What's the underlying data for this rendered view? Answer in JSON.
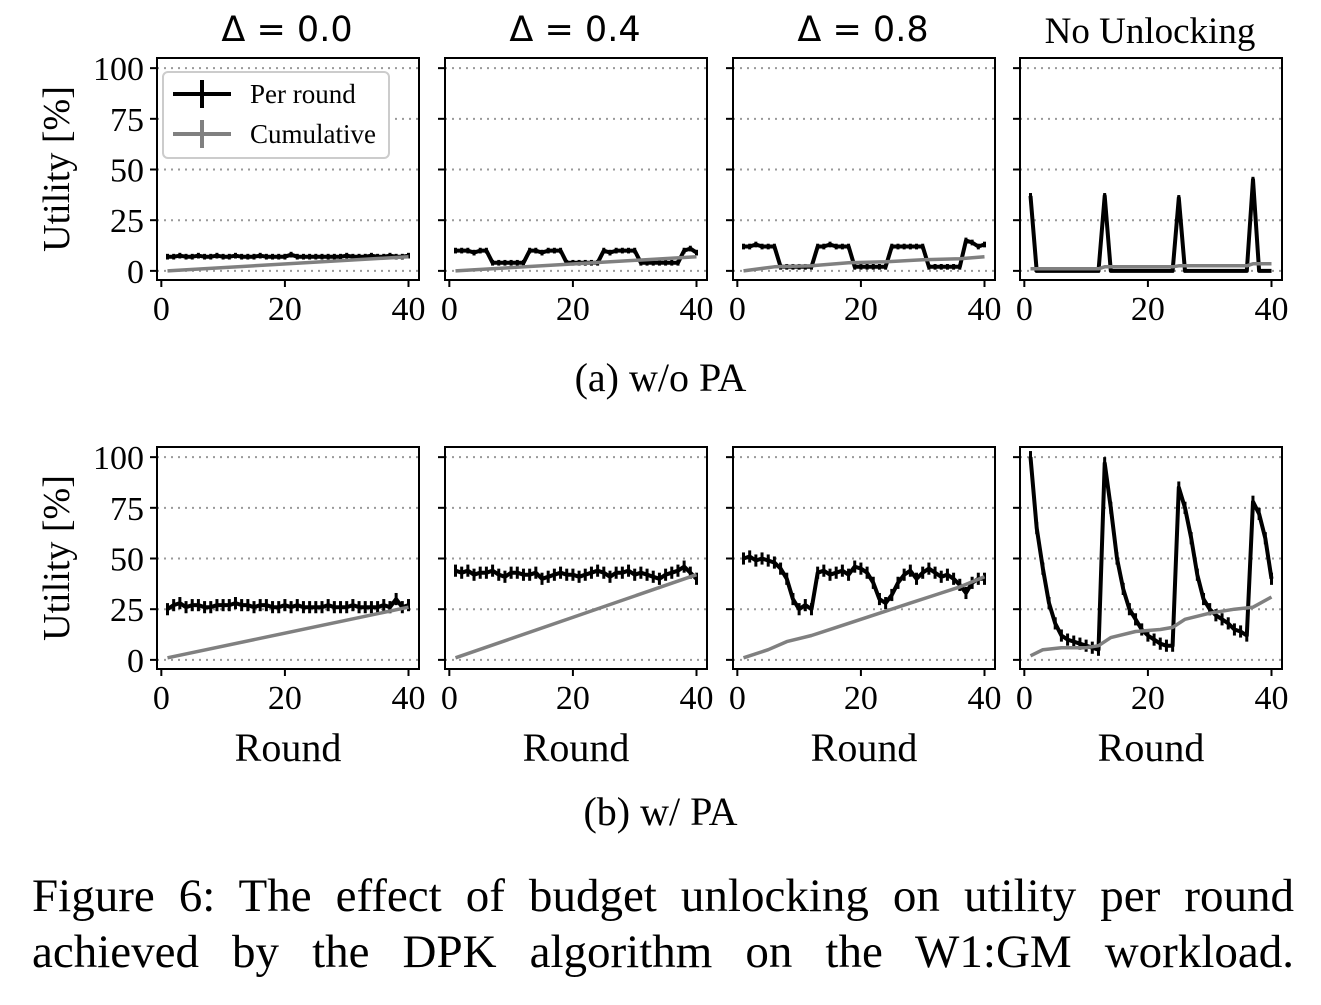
{
  "panel_titles": [
    "Δ = 0.0",
    "Δ = 0.4",
    "Δ = 0.8",
    "No Unlocking"
  ],
  "subcaptions": {
    "a": "(a) w/o PA",
    "b": "(b) w/ PA"
  },
  "caption": {
    "line1": "Figure 6: The effect of budget unlocking on utility per round",
    "line2": "achieved by the DPK algorithm on the W1:GM workload."
  },
  "colors": {
    "per_round": "#000000",
    "cumulative": "#808080",
    "grid": "#9a9a9a"
  },
  "chart_data": [
    {
      "type": "line",
      "row": "(a) w/o PA",
      "title": "Δ = 0.0",
      "xlabel": "",
      "ylabel": "Utility [%]",
      "xlim": [
        0,
        40
      ],
      "ylim": [
        0,
        100
      ],
      "xticks": [
        0,
        20,
        40
      ],
      "yticks": [
        0,
        25,
        50,
        75,
        100
      ],
      "grid": "y dotted",
      "legend": {
        "entries": [
          "Per round",
          "Cumulative"
        ],
        "position": "top-left"
      },
      "series": [
        {
          "name": "Per round",
          "x": [
            1,
            2,
            3,
            4,
            5,
            6,
            7,
            8,
            9,
            10,
            11,
            12,
            13,
            14,
            15,
            16,
            17,
            18,
            19,
            20,
            21,
            22,
            23,
            24,
            25,
            26,
            27,
            28,
            29,
            30,
            31,
            32,
            33,
            34,
            35,
            36,
            37,
            38,
            39,
            40
          ],
          "values": [
            7,
            7,
            7.5,
            7,
            7,
            7.5,
            7,
            7,
            7.5,
            7,
            7,
            7.5,
            7,
            7,
            7,
            7.5,
            7,
            7,
            7,
            7,
            8,
            7,
            7,
            7,
            7,
            7,
            7,
            7,
            7,
            7.5,
            7,
            7,
            7,
            7.5,
            7,
            7,
            7.5,
            7,
            7,
            7.5
          ]
        },
        {
          "name": "Cumulative",
          "x": [
            1,
            40
          ],
          "values": [
            0,
            7
          ]
        }
      ]
    },
    {
      "type": "line",
      "row": "(a) w/o PA",
      "title": "Δ = 0.4",
      "xlabel": "",
      "ylabel": "",
      "xlim": [
        0,
        40
      ],
      "ylim": [
        0,
        100
      ],
      "xticks": [
        0,
        20,
        40
      ],
      "yticks": [
        0,
        25,
        50,
        75,
        100
      ],
      "grid": "y dotted",
      "series": [
        {
          "name": "Per round",
          "x": [
            1,
            2,
            3,
            4,
            5,
            6,
            7,
            8,
            9,
            10,
            11,
            12,
            13,
            14,
            15,
            16,
            17,
            18,
            19,
            20,
            21,
            22,
            23,
            24,
            25,
            26,
            27,
            28,
            29,
            30,
            31,
            32,
            33,
            34,
            35,
            36,
            37,
            38,
            39,
            40
          ],
          "values": [
            10,
            10,
            10,
            9,
            10,
            10,
            4,
            4,
            4,
            4,
            4,
            4,
            10,
            10,
            9,
            10,
            10,
            10,
            4,
            4,
            4,
            4,
            4,
            4,
            10,
            9,
            10,
            10,
            10,
            10,
            4,
            4,
            4,
            4,
            4,
            4,
            4,
            10,
            11,
            9
          ]
        },
        {
          "name": "Cumulative",
          "x": [
            1,
            40
          ],
          "values": [
            0,
            7
          ]
        }
      ]
    },
    {
      "type": "line",
      "row": "(a) w/o PA",
      "title": "Δ = 0.8",
      "xlabel": "",
      "ylabel": "",
      "xlim": [
        0,
        40
      ],
      "ylim": [
        0,
        100
      ],
      "xticks": [
        0,
        20,
        40
      ],
      "yticks": [
        0,
        25,
        50,
        75,
        100
      ],
      "grid": "y dotted",
      "series": [
        {
          "name": "Per round",
          "x": [
            1,
            2,
            3,
            4,
            5,
            6,
            7,
            8,
            9,
            10,
            11,
            12,
            13,
            14,
            15,
            16,
            17,
            18,
            19,
            20,
            21,
            22,
            23,
            24,
            25,
            26,
            27,
            28,
            29,
            30,
            31,
            32,
            33,
            34,
            35,
            36,
            37,
            38,
            39,
            40
          ],
          "values": [
            12,
            12,
            13,
            12,
            12,
            12,
            2,
            2,
            2,
            2,
            2,
            2,
            12,
            12,
            13,
            12,
            12,
            12,
            2,
            2,
            2,
            2,
            2,
            2,
            12,
            12,
            12,
            12,
            12,
            12,
            2,
            2,
            2,
            2,
            2,
            2,
            15,
            14,
            12,
            13
          ]
        },
        {
          "name": "Cumulative",
          "x": [
            1,
            6,
            12,
            18,
            24,
            30,
            36,
            40
          ],
          "values": [
            0,
            2,
            2.5,
            4,
            4.5,
            5.5,
            6,
            7
          ]
        }
      ]
    },
    {
      "type": "line",
      "row": "(a) w/o PA",
      "title": "No Unlocking",
      "xlabel": "",
      "ylabel": "",
      "xlim": [
        0,
        40
      ],
      "ylim": [
        0,
        100
      ],
      "xticks": [
        0,
        20,
        40
      ],
      "yticks": [
        0,
        25,
        50,
        75,
        100
      ],
      "grid": "y dotted",
      "series": [
        {
          "name": "Per round",
          "x": [
            1,
            2,
            3,
            4,
            5,
            6,
            7,
            8,
            9,
            10,
            11,
            12,
            13,
            14,
            15,
            16,
            17,
            18,
            19,
            20,
            21,
            22,
            23,
            24,
            25,
            26,
            27,
            28,
            29,
            30,
            31,
            32,
            33,
            34,
            35,
            36,
            37,
            38,
            39,
            40
          ],
          "values": [
            37,
            0,
            0,
            0,
            0,
            0,
            0,
            0,
            0,
            0,
            0,
            0,
            37,
            0,
            0,
            0,
            0,
            0,
            0,
            0,
            0,
            0,
            0,
            0,
            36,
            0,
            0,
            0,
            0,
            0,
            0,
            0,
            0,
            0,
            0,
            0,
            45,
            0,
            0,
            0
          ]
        },
        {
          "name": "Cumulative",
          "x": [
            1,
            12,
            13,
            24,
            25,
            36,
            37,
            40
          ],
          "values": [
            1,
            1,
            2,
            2,
            2.5,
            2.5,
            3.5,
            3.5
          ]
        }
      ]
    },
    {
      "type": "line",
      "row": "(b) w/ PA",
      "title": "",
      "xlabel": "Round",
      "ylabel": "Utility [%]",
      "xlim": [
        0,
        40
      ],
      "ylim": [
        0,
        100
      ],
      "xticks": [
        0,
        20,
        40
      ],
      "yticks": [
        0,
        25,
        50,
        75,
        100
      ],
      "grid": "y dotted",
      "series": [
        {
          "name": "Per round",
          "x": [
            1,
            2,
            3,
            4,
            5,
            6,
            7,
            8,
            9,
            10,
            11,
            12,
            13,
            14,
            15,
            16,
            17,
            18,
            19,
            20,
            21,
            22,
            23,
            24,
            25,
            26,
            27,
            28,
            29,
            30,
            31,
            32,
            33,
            34,
            35,
            36,
            37,
            38,
            39,
            40
          ],
          "values": [
            25,
            27,
            28,
            26,
            27,
            27,
            26,
            26,
            27,
            27,
            27,
            28,
            27,
            27,
            26,
            27,
            27,
            26,
            26,
            27,
            26,
            27,
            26,
            26,
            26,
            26,
            27,
            26,
            26,
            26,
            27,
            26,
            26,
            26,
            26,
            27,
            26,
            30,
            26,
            27
          ]
        },
        {
          "name": "Cumulative",
          "x": [
            1,
            40
          ],
          "values": [
            1,
            26
          ]
        }
      ]
    },
    {
      "type": "line",
      "row": "(b) w/ PA",
      "title": "",
      "xlabel": "Round",
      "ylabel": "",
      "xlim": [
        0,
        40
      ],
      "ylim": [
        0,
        100
      ],
      "xticks": [
        0,
        20,
        40
      ],
      "yticks": [
        0,
        25,
        50,
        75,
        100
      ],
      "grid": "y dotted",
      "series": [
        {
          "name": "Per round",
          "x": [
            1,
            2,
            3,
            4,
            5,
            6,
            7,
            8,
            9,
            10,
            11,
            12,
            13,
            14,
            15,
            16,
            17,
            18,
            19,
            20,
            21,
            22,
            23,
            24,
            25,
            26,
            27,
            28,
            29,
            30,
            31,
            32,
            33,
            34,
            35,
            36,
            37,
            38,
            39,
            40
          ],
          "values": [
            44,
            43,
            44,
            42,
            43,
            43,
            44,
            42,
            41,
            43,
            43,
            42,
            42,
            43,
            40,
            41,
            42,
            43,
            42,
            42,
            41,
            42,
            43,
            44,
            43,
            41,
            43,
            43,
            44,
            42,
            43,
            42,
            41,
            40,
            42,
            43,
            44,
            46,
            43,
            40
          ]
        },
        {
          "name": "Cumulative",
          "x": [
            1,
            40
          ],
          "values": [
            1,
            42
          ]
        }
      ]
    },
    {
      "type": "line",
      "row": "(b) w/ PA",
      "title": "",
      "xlabel": "Round",
      "ylabel": "",
      "xlim": [
        0,
        40
      ],
      "ylim": [
        0,
        100
      ],
      "xticks": [
        0,
        20,
        40
      ],
      "yticks": [
        0,
        25,
        50,
        75,
        100
      ],
      "grid": "y dotted",
      "series": [
        {
          "name": "Per round",
          "x": [
            1,
            2,
            3,
            4,
            5,
            6,
            7,
            8,
            9,
            10,
            11,
            12,
            13,
            14,
            15,
            16,
            17,
            18,
            19,
            20,
            21,
            22,
            23,
            24,
            25,
            26,
            27,
            28,
            29,
            30,
            31,
            32,
            33,
            34,
            35,
            36,
            37,
            38,
            39,
            40
          ],
          "values": [
            50,
            51,
            49,
            50,
            49,
            48,
            45,
            40,
            30,
            25,
            27,
            25,
            43,
            44,
            42,
            43,
            44,
            42,
            46,
            45,
            43,
            38,
            30,
            28,
            32,
            38,
            42,
            44,
            40,
            43,
            45,
            43,
            41,
            42,
            40,
            37,
            33,
            38,
            40,
            40
          ]
        },
        {
          "name": "Cumulative",
          "x": [
            1,
            5,
            8,
            12,
            16,
            20,
            24,
            28,
            32,
            36,
            40
          ],
          "values": [
            1,
            5,
            9,
            12,
            16,
            20,
            24,
            28,
            32,
            36,
            41
          ]
        }
      ]
    },
    {
      "type": "line",
      "row": "(b) w/ PA",
      "title": "",
      "xlabel": "Round",
      "ylabel": "",
      "xlim": [
        0,
        40
      ],
      "ylim": [
        0,
        100
      ],
      "xticks": [
        0,
        20,
        40
      ],
      "yticks": [
        0,
        25,
        50,
        75,
        100
      ],
      "grid": "y dotted",
      "series": [
        {
          "name": "Per round",
          "x": [
            1,
            2,
            3,
            4,
            5,
            6,
            7,
            8,
            9,
            10,
            11,
            12,
            13,
            14,
            15,
            16,
            17,
            18,
            19,
            20,
            21,
            22,
            23,
            24,
            25,
            26,
            27,
            28,
            29,
            30,
            31,
            32,
            33,
            34,
            35,
            36,
            37,
            38,
            39,
            40
          ],
          "values": [
            100,
            65,
            45,
            28,
            18,
            12,
            10,
            9,
            8,
            7,
            6,
            5,
            97,
            75,
            50,
            35,
            25,
            20,
            15,
            12,
            10,
            8,
            7,
            7,
            85,
            75,
            60,
            42,
            30,
            25,
            22,
            20,
            18,
            15,
            14,
            12,
            78,
            72,
            60,
            40
          ]
        },
        {
          "name": "Cumulative",
          "x": [
            1,
            3,
            6,
            10,
            12,
            14,
            18,
            22,
            24,
            26,
            30,
            34,
            37,
            40
          ],
          "values": [
            2,
            5,
            6,
            6,
            7,
            11,
            14,
            15,
            16,
            20,
            23,
            25,
            26,
            31
          ]
        }
      ]
    }
  ]
}
